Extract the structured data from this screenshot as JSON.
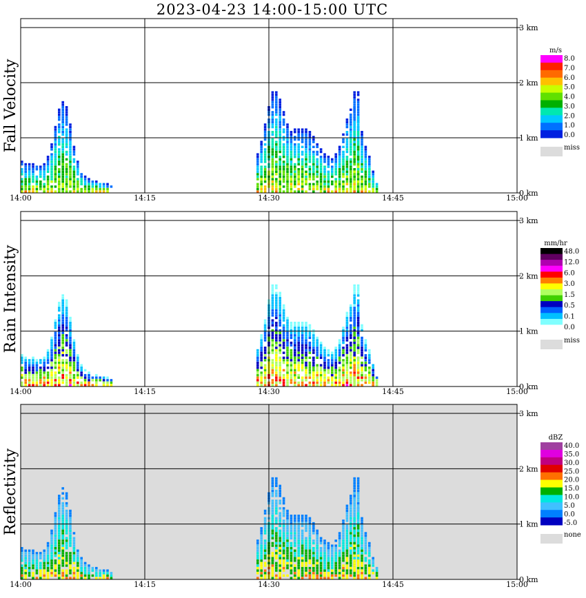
{
  "title": "2023-04-23  14:00-15:00 UTC",
  "x_ticks": [
    "14:00",
    "14:15",
    "14:30",
    "14:45",
    "15:00"
  ],
  "y_ticks": [
    "0 km",
    "1 km",
    "2 km",
    "3 km"
  ],
  "chart_data": [
    {
      "type": "heatmap",
      "ylabel": "Fall Velocity",
      "unit": "m/s",
      "colorbar": {
        "labels": [
          "8.0",
          "7.0",
          "6.0",
          "5.0",
          "4.0",
          "3.0",
          "2.0",
          "1.0",
          "0.0"
        ],
        "colors": [
          "#ff00ff",
          "#ff2000",
          "#ff6a00",
          "#ffc000",
          "#c8ff00",
          "#60e000",
          "#00b000",
          "#00e8b0",
          "#00c8ff",
          "#0070ff",
          "#0020e0"
        ],
        "missing_label": "miss",
        "missing_color": "#dcdcdc"
      },
      "background": "#ffffff",
      "x_range": [
        "14:00",
        "15:00"
      ],
      "y_range_km": [
        0,
        3
      ],
      "grid": true
    },
    {
      "type": "heatmap",
      "ylabel": "Rain Intensity",
      "unit": "mm/hr",
      "colorbar": {
        "labels": [
          "48.0",
          "12.0",
          "6.0",
          "3.0",
          "1.5",
          "0.5",
          "0.1",
          "0.0"
        ],
        "colors": [
          "#000000",
          "#600060",
          "#b000b0",
          "#ff00ff",
          "#ff0000",
          "#ff8000",
          "#ffff00",
          "#b0ff60",
          "#40d000",
          "#0000c0",
          "#0060ff",
          "#00c0ff",
          "#80ffff",
          "#ffffff"
        ],
        "missing_label": "miss",
        "missing_color": "#dcdcdc"
      },
      "background": "#ffffff",
      "x_range": [
        "14:00",
        "15:00"
      ],
      "y_range_km": [
        0,
        3
      ],
      "grid": true
    },
    {
      "type": "heatmap",
      "ylabel": "Reflectivity",
      "unit": "dBZ",
      "colorbar": {
        "labels": [
          "40.0",
          "35.0",
          "30.0",
          "25.0",
          "20.0",
          "15.0",
          "10.0",
          "5.0",
          "0.0",
          "-5.0"
        ],
        "colors": [
          "#a040a0",
          "#e000e0",
          "#c00080",
          "#e00000",
          "#ff7000",
          "#ffff00",
          "#00b000",
          "#00e8e0",
          "#40c0ff",
          "#0080ff",
          "#0000c0"
        ],
        "missing_label": "none",
        "missing_color": "#dcdcdc"
      },
      "background": "#dcdcdc",
      "x_range": [
        "14:00",
        "15:00"
      ],
      "y_range_km": [
        0,
        3
      ],
      "grid": true
    }
  ]
}
